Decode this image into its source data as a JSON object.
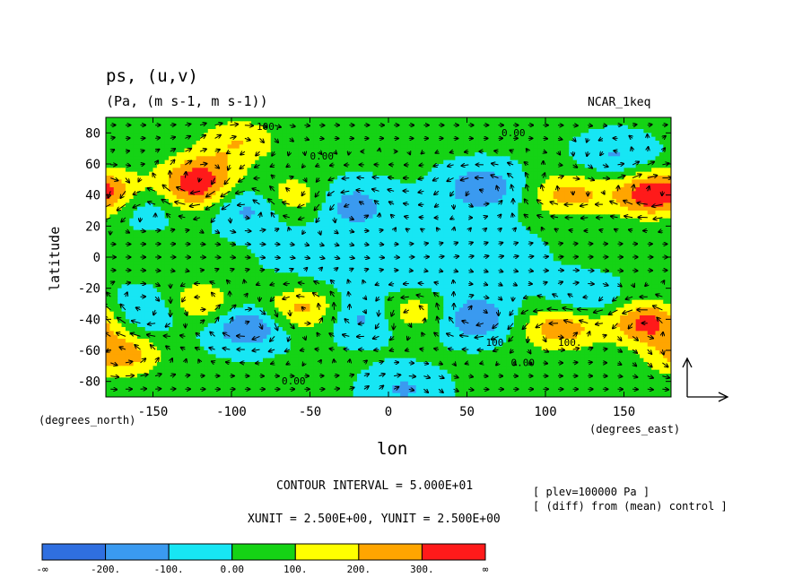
{
  "header": {
    "title": "ps, (u,v)",
    "subtitle": "(Pa, (m s-1, m s-1))",
    "model": "NCAR_1keq"
  },
  "footer": {
    "contour_interval": "CONTOUR INTERVAL = 5.000E+01",
    "units": "XUNIT = 2.500E+00, YUNIT = 2.500E+00",
    "plev": "[ plev=100000 Pa ]",
    "diff": "[ (diff) from (mean) control ]"
  },
  "chart_data": {
    "type": "heatmap",
    "title": "ps, (u,v)",
    "subtitle": "(Pa, (m s-1, m s-1))",
    "xlabel": "lon",
    "ylabel": "latitude",
    "x_unit_label": "(degrees_east)",
    "y_unit_label": "(degrees_north)",
    "xlim": [
      -180,
      180
    ],
    "ylim": [
      -90,
      90
    ],
    "x_ticks": [
      -150,
      -100,
      -50,
      0,
      50,
      100,
      150
    ],
    "y_ticks": [
      80,
      60,
      40,
      20,
      0,
      -20,
      -40,
      -60,
      -80
    ],
    "x_tick_labels": [
      "-150",
      "-100",
      "-50",
      "0",
      "50",
      "100",
      "150"
    ],
    "y_tick_labels": [
      "80",
      "60",
      "40",
      "20",
      "0",
      "-20",
      "-40",
      "-60",
      "-80"
    ],
    "contour_interval": 50,
    "levels": [
      -200,
      -100,
      0,
      100,
      200,
      300
    ],
    "colorbar": {
      "labels": [
        "-∞",
        "-200.",
        "-100.",
        "0.00",
        "100.",
        "200.",
        "300.",
        "∞"
      ],
      "colors": [
        "#2f6fe0",
        "#3a9af0",
        "#17e6f4",
        "#15d315",
        "#ffff00",
        "#ffa500",
        "#ff1a1a"
      ]
    },
    "contour_labels": [
      {
        "text": "100.",
        "lon": -84,
        "lat": 82
      },
      {
        "text": "0.00",
        "lon": 72,
        "lat": 78
      },
      {
        "text": "0.00",
        "lon": -50,
        "lat": 63
      },
      {
        "text": "0.00",
        "lon": -68,
        "lat": -82
      },
      {
        "text": "100.",
        "lon": 108,
        "lat": -57
      },
      {
        "text": "0.00",
        "lon": 78,
        "lat": -70
      },
      {
        "text": "100",
        "lon": 62,
        "lat": -57
      }
    ],
    "fields": [
      {
        "lon": -125,
        "lat": 42,
        "value": 260
      },
      {
        "lon": -118,
        "lat": 55,
        "value": 200
      },
      {
        "lon": -95,
        "lat": 75,
        "value": 170
      },
      {
        "lon": -60,
        "lat": 38,
        "value": 180
      },
      {
        "lon": -155,
        "lat": 35,
        "value": -150
      },
      {
        "lon": -90,
        "lat": 32,
        "value": -170
      },
      {
        "lon": -25,
        "lat": 35,
        "value": -150
      },
      {
        "lon": 60,
        "lat": 45,
        "value": -200
      },
      {
        "lon": 115,
        "lat": 40,
        "value": 220
      },
      {
        "lon": 165,
        "lat": 40,
        "value": 280
      },
      {
        "lon": 145,
        "lat": 65,
        "value": -130
      },
      {
        "lon": -175,
        "lat": 42,
        "value": 200
      },
      {
        "lon": -120,
        "lat": -30,
        "value": 180
      },
      {
        "lon": -90,
        "lat": -45,
        "value": -230
      },
      {
        "lon": -55,
        "lat": -33,
        "value": 230
      },
      {
        "lon": -155,
        "lat": -35,
        "value": -150
      },
      {
        "lon": -15,
        "lat": -40,
        "value": -150
      },
      {
        "lon": 15,
        "lat": -35,
        "value": 190
      },
      {
        "lon": 55,
        "lat": -40,
        "value": -200
      },
      {
        "lon": 110,
        "lat": -45,
        "value": 270
      },
      {
        "lon": 165,
        "lat": -42,
        "value": 320
      },
      {
        "lon": 125,
        "lat": -28,
        "value": -130
      },
      {
        "lon": -170,
        "lat": -63,
        "value": 240
      },
      {
        "lon": 10,
        "lat": -85,
        "value": -130
      }
    ]
  }
}
